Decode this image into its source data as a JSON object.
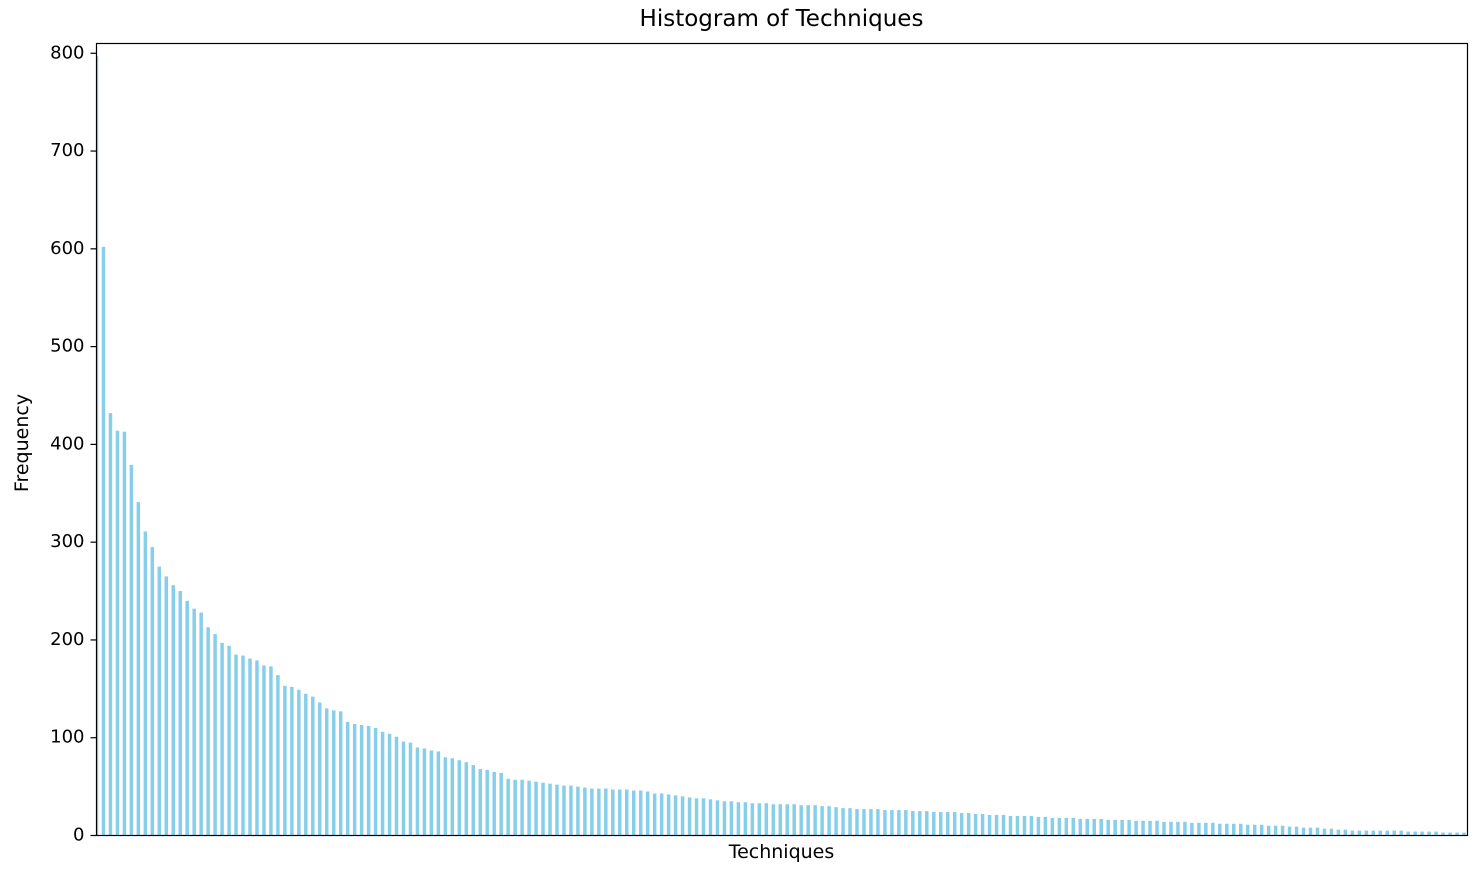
{
  "chart_data": {
    "type": "bar",
    "title": "Histogram of Techniques",
    "xlabel": "Techniques",
    "ylabel": "Frequency",
    "ylim": [
      0,
      810
    ],
    "yticks": [
      0,
      100,
      200,
      300,
      400,
      500,
      600,
      700,
      800
    ],
    "bar_color": "#87ceeb",
    "grid": false,
    "legend": "none",
    "values": [
      797,
      602,
      432,
      414,
      413,
      379,
      341,
      311,
      295,
      275,
      265,
      256,
      250,
      240,
      232,
      228,
      213,
      206,
      197,
      194,
      185,
      184,
      181,
      179,
      174,
      173,
      164,
      153,
      152,
      149,
      145,
      142,
      136,
      130,
      128,
      127,
      116,
      114,
      113,
      112,
      110,
      106,
      104,
      101,
      96,
      95,
      90,
      89,
      87,
      86,
      80,
      79,
      77,
      75,
      72,
      68,
      67,
      65,
      64,
      58,
      57,
      57,
      56,
      55,
      54,
      53,
      52,
      51,
      51,
      50,
      49,
      48,
      48,
      48,
      47,
      47,
      47,
      46,
      46,
      45,
      43,
      43,
      42,
      41,
      40,
      39,
      38,
      38,
      37,
      36,
      35,
      35,
      34,
      34,
      33,
      33,
      33,
      32,
      32,
      32,
      32,
      31,
      31,
      31,
      30,
      30,
      29,
      28,
      28,
      27,
      27,
      27,
      27,
      26,
      26,
      26,
      26,
      25,
      25,
      25,
      24,
      24,
      24,
      24,
      23,
      23,
      22,
      22,
      21,
      21,
      21,
      20,
      20,
      20,
      20,
      19,
      19,
      18,
      18,
      18,
      18,
      17,
      17,
      17,
      17,
      16,
      16,
      16,
      16,
      15,
      15,
      15,
      15,
      14,
      14,
      14,
      14,
      13,
      13,
      13,
      13,
      12,
      12,
      12,
      12,
      11,
      11,
      11,
      10,
      10,
      10,
      9,
      9,
      8,
      8,
      8,
      7,
      7,
      6,
      6,
      5,
      5,
      5,
      5,
      5,
      5,
      5,
      5,
      4,
      4,
      4,
      4,
      4,
      3,
      3,
      3,
      3
    ]
  }
}
